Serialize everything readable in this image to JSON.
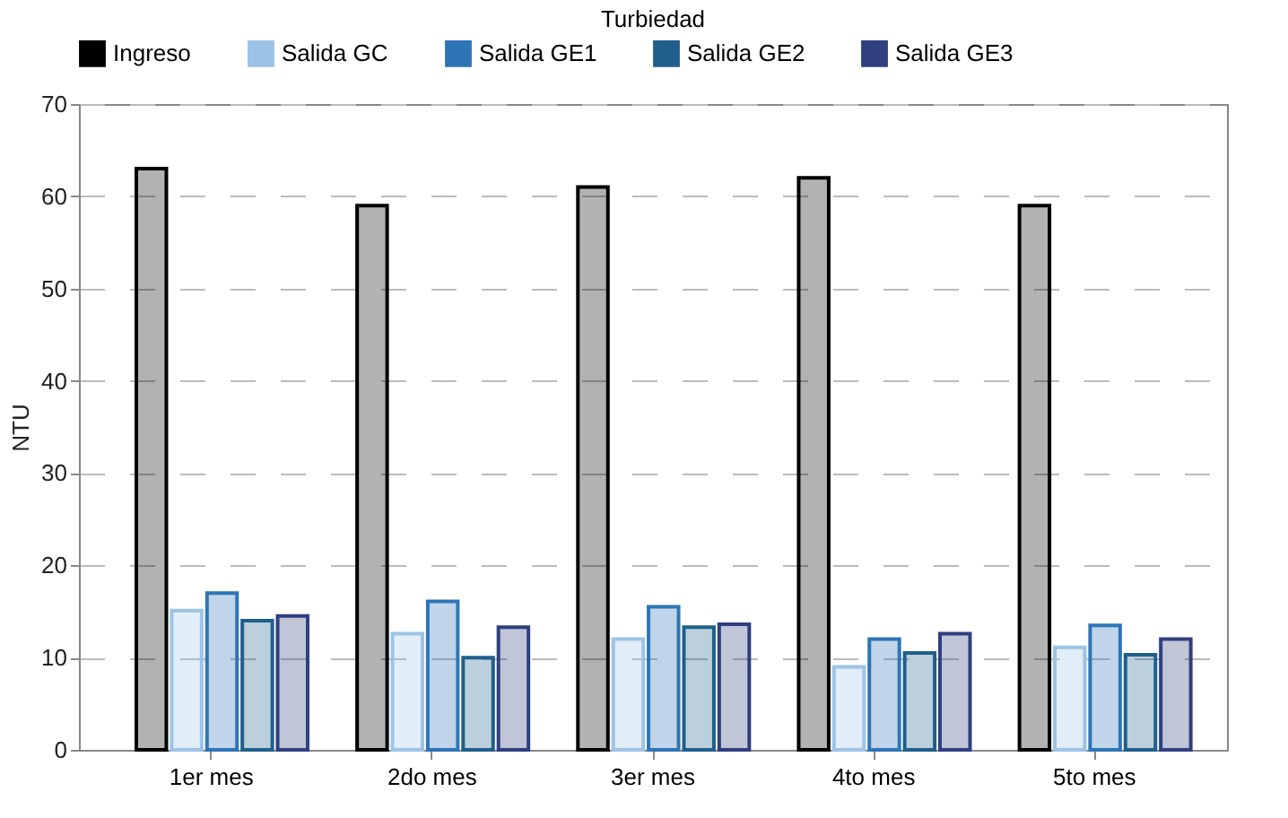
{
  "chart_data": {
    "type": "bar",
    "title": "Turbiedad",
    "ylabel": "NTU",
    "categories": [
      "1er mes",
      "2do mes",
      "3er mes",
      "4to mes",
      "5to mes"
    ],
    "series": [
      {
        "name": "Ingreso",
        "color": "#000000",
        "values": [
          63,
          59,
          61,
          62,
          59
        ]
      },
      {
        "name": "Salida GC",
        "color": "#9dc3e6",
        "values": [
          15.1,
          12.6,
          12.0,
          9.0,
          11.1
        ]
      },
      {
        "name": "Salida GE1",
        "color": "#2e75b6",
        "values": [
          17.0,
          16.1,
          15.5,
          12.0,
          13.5
        ]
      },
      {
        "name": "Salida GE2",
        "color": "#1f5f8b",
        "values": [
          14.0,
          10.0,
          13.3,
          10.5,
          10.3
        ]
      },
      {
        "name": "Salida GE3",
        "color": "#2f3f7f",
        "values": [
          14.5,
          13.3,
          13.6,
          12.6,
          12.0
        ]
      }
    ],
    "ylim": [
      0,
      70
    ],
    "yticks": [
      0,
      10,
      20,
      30,
      40,
      50,
      60,
      70
    ],
    "grid": "y",
    "legend": "top"
  }
}
